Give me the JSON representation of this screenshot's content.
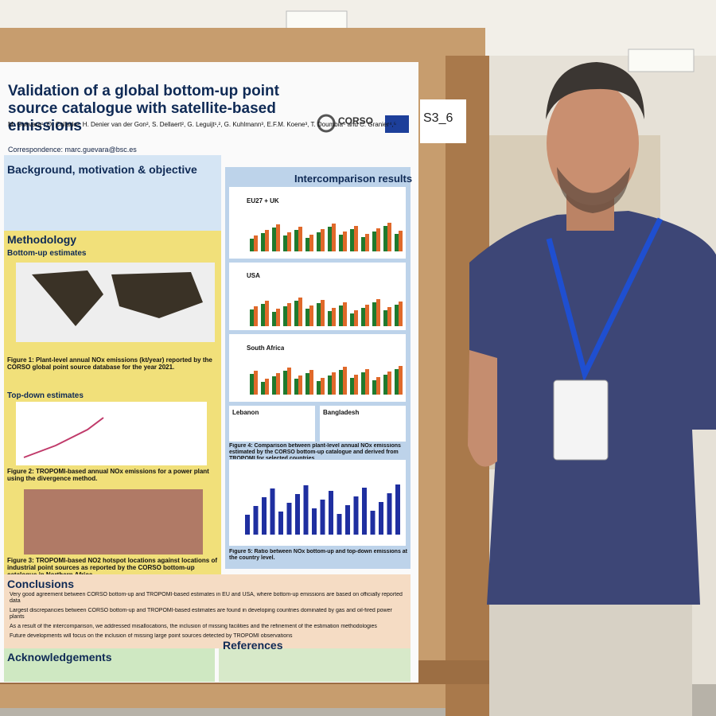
{
  "poster": {
    "title": "Validation of a global bottom-up point source catalogue with satellite-based emissions",
    "authors": "M. Guevara¹, O. Collado¹, H. Denier van der Gon², S. Dellaert², G. Leguijt¹,², G. Kuhlmann³, E.F.M. Koene³, T. Doumbia⁴ and C. Granier⁴,⁵",
    "correspondence": "Correspondence: marc.guevara@bsc.es",
    "logo": "CORSO",
    "sections": {
      "background": "Background, motivation & objective",
      "methodology": "Methodology",
      "bottom_up": "Bottom-up estimates",
      "top_down": "Top-down estimates",
      "intercomparison": "Intercomparison results",
      "conclusions": "Conclusions",
      "acknowledgements": "Acknowledgements",
      "references": "References"
    },
    "panels": [
      "EU27 + UK",
      "USA",
      "South Africa",
      "Lebanon",
      "Bangladesh"
    ],
    "captions": {
      "figure1": "Figure 1: Plant-level annual NOx emissions (kt/year) reported by the CORSO global point source database for the year 2021.",
      "figure2": "Figure 2: TROPOMI-based annual NOx emissions for a power plant using the divergence method.",
      "figure3": "Figure 3: TROPOMI-based NO2 hotspot locations against locations of industrial point sources as reported by the CORSO bottom-up catalogue in Northern Africa",
      "figure4": "Figure 4: Comparison between plant-level annual NOx emissions estimated by the CORSO bottom-up catalogue and derived from TROPOMI for selected countries",
      "figure5": "Figure 5: Ratio between NOx bottom-up and top-down emissions at the country level."
    },
    "conclusions": [
      "Very good agreement between CORSO bottom-up and TROPOMI-based estimates in EU and USA, where bottom-up emissions are based on officially reported data",
      "Largest discrepancies between CORSO bottom-up and TROPOMI-based estimates are found in developing countries dominated by gas and oil-fired power plants",
      "As a result of the intercomparison, we addressed misallocations, the inclusion of missing facilities and the refinement of the estimation methodologies",
      "Future developments will focus on the inclusion of missing large point sources detected by TROPOMI observations"
    ],
    "badge": "S3_6"
  }
}
